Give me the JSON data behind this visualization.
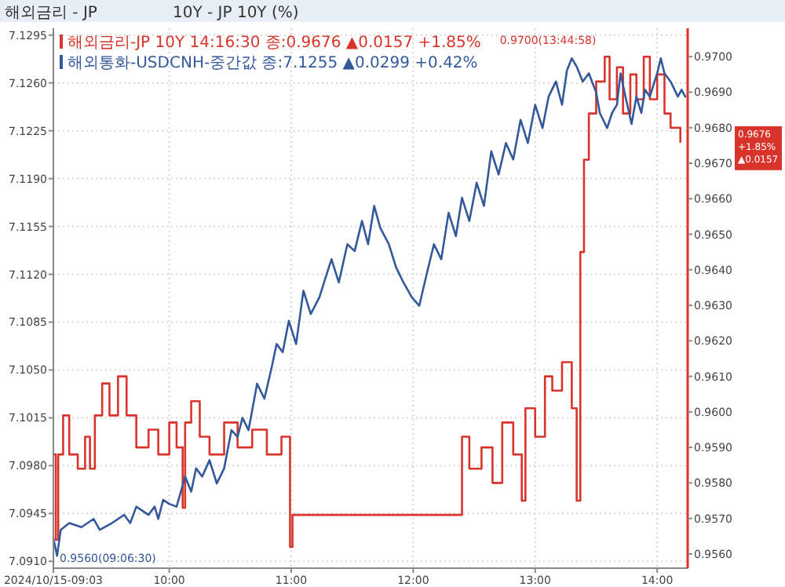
{
  "chart_data": {
    "type": "line",
    "title": "해외금리 - JP",
    "subtitle": "10Y - JP 10Y (%)",
    "xlim": [
      9.05,
      14.25
    ],
    "xticks": [
      {
        "value": 9.05,
        "label": "2024/10/15-09:03"
      },
      {
        "value": 10,
        "label": "10:00"
      },
      {
        "value": 11,
        "label": "11:00"
      },
      {
        "value": 12,
        "label": "12:00"
      },
      {
        "value": 13,
        "label": "13:00"
      },
      {
        "value": 14,
        "label": "14:00"
      }
    ],
    "ylim": [
      7.0905,
      7.13
    ],
    "yticks": [
      {
        "value": 7.091,
        "label": "7.0910"
      },
      {
        "value": 7.0945,
        "label": "7.0945"
      },
      {
        "value": 7.098,
        "label": "7.0980"
      },
      {
        "value": 7.1015,
        "label": "7.1015"
      },
      {
        "value": 7.105,
        "label": "7.1050"
      },
      {
        "value": 7.1085,
        "label": "7.1085"
      },
      {
        "value": 7.112,
        "label": "7.1120"
      },
      {
        "value": 7.1155,
        "label": "7.1155"
      },
      {
        "value": 7.119,
        "label": "7.1190"
      },
      {
        "value": 7.1225,
        "label": "7.1225"
      },
      {
        "value": 7.126,
        "label": "7.1260"
      },
      {
        "value": 7.1295,
        "label": "7.1295"
      }
    ],
    "y2lim": [
      0.9556,
      0.9708
    ],
    "y2ticks": [
      {
        "value": 0.956,
        "label": "0.9560"
      },
      {
        "value": 0.957,
        "label": "0.9570"
      },
      {
        "value": 0.958,
        "label": "0.9580"
      },
      {
        "value": 0.959,
        "label": "0.9590"
      },
      {
        "value": 0.96,
        "label": "0.9600"
      },
      {
        "value": 0.961,
        "label": "0.9610"
      },
      {
        "value": 0.962,
        "label": "0.9620"
      },
      {
        "value": 0.963,
        "label": "0.9630"
      },
      {
        "value": 0.964,
        "label": "0.9640"
      },
      {
        "value": 0.965,
        "label": "0.9650"
      },
      {
        "value": 0.966,
        "label": "0.9660"
      },
      {
        "value": 0.967,
        "label": "0.9670"
      },
      {
        "value": 0.968,
        "label": "0.9680"
      },
      {
        "value": 0.969,
        "label": "0.9690"
      },
      {
        "value": 0.97,
        "label": "0.9700"
      }
    ],
    "grid": true,
    "legend": "top left",
    "marker": "none",
    "line_style": "solid",
    "annotations": [
      "0.9560(09:06:30)",
      "0.9700(13:44:58)",
      "0.9676",
      "+1.85%",
      "▲0.0157"
    ],
    "series": [
      {
        "name": "해외금리-JP 10Y 14:16:30 종:0.9676 ▲0.0157 +1.85%",
        "color": "#d9342b",
        "type": "step",
        "axis": "y2",
        "x": [
          9.05,
          9.07,
          9.09,
          9.13,
          9.18,
          9.25,
          9.31,
          9.35,
          9.39,
          9.45,
          9.51,
          9.58,
          9.65,
          9.73,
          9.83,
          9.91,
          10.0,
          10.06,
          10.11,
          10.13,
          10.18,
          10.25,
          10.33,
          10.45,
          10.56,
          10.68,
          10.8,
          10.92,
          10.99,
          11.01,
          12.4,
          12.46,
          12.56,
          12.65,
          12.73,
          12.82,
          12.89,
          12.92,
          13.0,
          13.08,
          13.14,
          13.22,
          13.3,
          13.34,
          13.37,
          13.4,
          13.44,
          13.5,
          13.57,
          13.61,
          13.67,
          13.72,
          13.78,
          13.83,
          13.89,
          13.94,
          14.0,
          14.06,
          14.11,
          14.19
        ],
        "values": [
          0.9588,
          0.9564,
          0.9588,
          0.9599,
          0.9588,
          0.9584,
          0.9593,
          0.9584,
          0.9599,
          0.9608,
          0.9599,
          0.961,
          0.9599,
          0.959,
          0.9595,
          0.9588,
          0.9597,
          0.959,
          0.9573,
          0.9597,
          0.9603,
          0.9593,
          0.9588,
          0.9597,
          0.959,
          0.9595,
          0.9588,
          0.9593,
          0.9562,
          0.9571,
          0.9593,
          0.9584,
          0.959,
          0.958,
          0.9597,
          0.9588,
          0.9575,
          0.9601,
          0.9593,
          0.961,
          0.9606,
          0.9614,
          0.9601,
          0.9575,
          0.9645,
          0.9671,
          0.9684,
          0.9693,
          0.97,
          0.9688,
          0.9697,
          0.9684,
          0.9695,
          0.9688,
          0.97,
          0.9688,
          0.9695,
          0.9684,
          0.968,
          0.9676
        ]
      },
      {
        "name": "해외통화-USDCNH-중간값 종:7.1255 ▲0.0299 +0.42%",
        "color": "#34589c",
        "x": [
          9.05,
          9.08,
          9.11,
          9.18,
          9.28,
          9.38,
          9.43,
          9.53,
          9.63,
          9.68,
          9.73,
          9.83,
          9.88,
          9.91,
          9.95,
          10.0,
          10.06,
          10.13,
          10.18,
          10.22,
          10.27,
          10.33,
          10.39,
          10.45,
          10.51,
          10.56,
          10.6,
          10.65,
          10.72,
          10.78,
          10.84,
          10.88,
          10.93,
          10.98,
          11.04,
          11.1,
          11.16,
          11.23,
          11.29,
          11.33,
          11.39,
          11.46,
          11.52,
          11.58,
          11.63,
          11.68,
          11.73,
          11.8,
          11.86,
          11.92,
          11.99,
          12.05,
          12.11,
          12.17,
          12.23,
          12.29,
          12.35,
          12.4,
          12.46,
          12.52,
          12.58,
          12.64,
          12.7,
          12.76,
          12.82,
          12.88,
          12.94,
          13.0,
          13.06,
          13.11,
          13.17,
          13.22,
          13.26,
          13.3,
          13.34,
          13.39,
          13.44,
          13.5,
          13.53,
          13.59,
          13.63,
          13.67,
          13.7,
          13.74,
          13.79,
          13.83,
          13.87,
          13.9,
          13.94,
          14.0,
          14.03,
          14.06,
          14.11,
          14.17,
          14.2,
          14.23
        ],
        "values": [
          7.0927,
          7.0914,
          7.0933,
          7.0938,
          7.0935,
          7.0941,
          7.0933,
          7.0938,
          7.0944,
          7.0938,
          7.095,
          7.0944,
          7.095,
          7.0941,
          7.0955,
          7.0952,
          7.095,
          7.0972,
          7.0961,
          7.0978,
          7.0972,
          7.0984,
          7.0967,
          7.0978,
          7.1006,
          7.1001,
          7.1015,
          7.1006,
          7.104,
          7.1029,
          7.1052,
          7.1069,
          7.1063,
          7.1086,
          7.1069,
          7.1108,
          7.1091,
          7.1103,
          7.112,
          7.1131,
          7.1114,
          7.1142,
          7.1137,
          7.1159,
          7.1142,
          7.117,
          7.1154,
          7.1142,
          7.1125,
          7.1114,
          7.1103,
          7.1097,
          7.112,
          7.1142,
          7.1131,
          7.1165,
          7.1148,
          7.1176,
          7.1159,
          7.1187,
          7.117,
          7.121,
          7.1193,
          7.1216,
          7.1204,
          7.1233,
          7.1216,
          7.1244,
          7.1227,
          7.125,
          7.1261,
          7.1244,
          7.1269,
          7.1278,
          7.1272,
          7.1261,
          7.1267,
          7.1253,
          7.1238,
          7.1227,
          7.1238,
          7.1244,
          7.1267,
          7.125,
          7.123,
          7.125,
          7.1238,
          7.1255,
          7.125,
          7.1267,
          7.1278,
          7.1267,
          7.1261,
          7.125,
          7.1255,
          7.125
        ]
      }
    ]
  }
}
